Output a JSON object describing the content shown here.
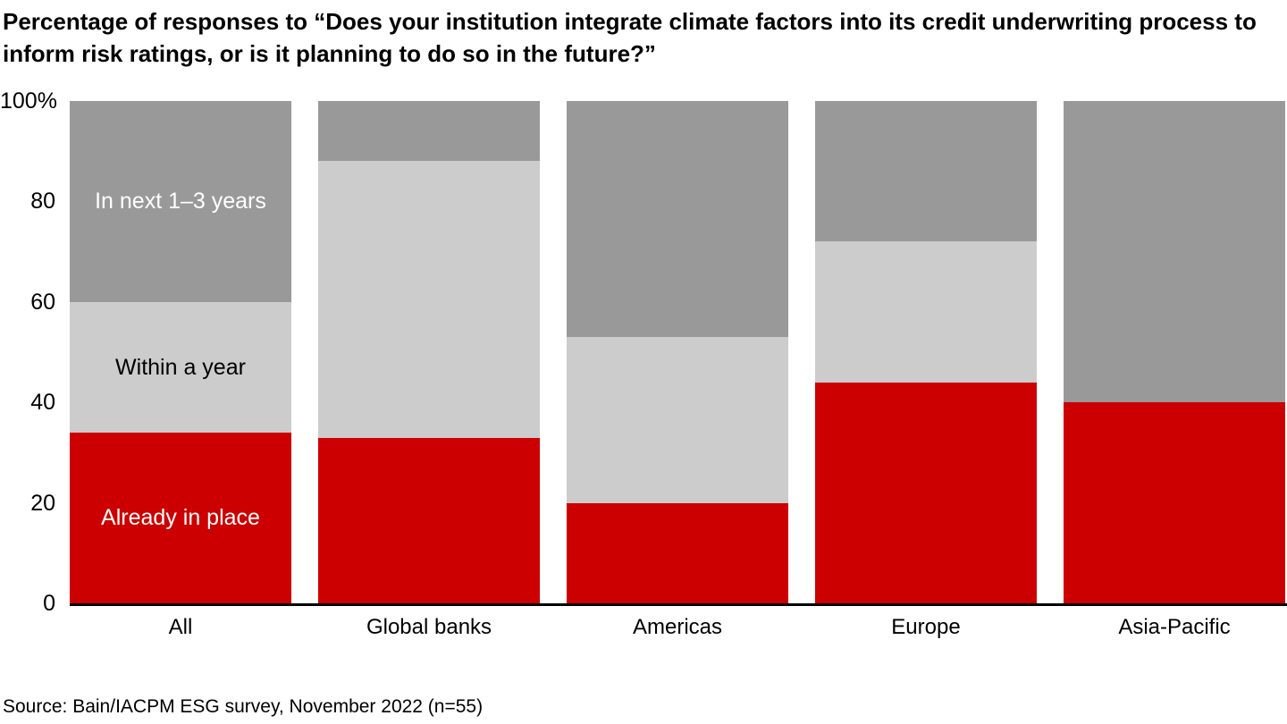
{
  "title": "Percentage of responses to “Does your institution integrate climate factors into its credit underwriting process to inform risk ratings, or is it planning to do so in the future?”",
  "source": "Source: Bain/IACPM ESG survey, November 2022 (n=55)",
  "colors": {
    "already_in_place": "#cc0000",
    "within_a_year": "#cccccc",
    "in_next_1_3_years": "#999999",
    "axis_line": "#000000",
    "background": "#ffffff",
    "text": "#000000"
  },
  "chart_data": {
    "type": "bar",
    "variant": "100%-stacked vertical bars",
    "title": "Percentage of responses to “Does your institution integrate climate factors into its credit underwriting process to inform risk ratings, or is it planning to do so in the future?”",
    "categories": [
      "All",
      "Global banks",
      "Americas",
      "Europe",
      "Asia-Pacific"
    ],
    "series": [
      {
        "name": "Already in place",
        "color": "#cc0000",
        "label_color": "#ffffff",
        "values": [
          34,
          33,
          20,
          44,
          40
        ]
      },
      {
        "name": "Within a year",
        "color": "#cccccc",
        "label_color": "#000000",
        "values": [
          26,
          55,
          33,
          28,
          0
        ]
      },
      {
        "name": "In next 1–3 years",
        "color": "#999999",
        "label_color": "#ffffff",
        "values": [
          40,
          12,
          47,
          28,
          60
        ]
      }
    ],
    "stack_order": "bottom-to-top as listed in series",
    "y_axis": {
      "min": 0,
      "max": 100,
      "tick_values": [
        0,
        20,
        40,
        60,
        80,
        100
      ],
      "tick_labels": [
        "0",
        "20",
        "40",
        "60",
        "80",
        "100%"
      ]
    },
    "xlabel": "",
    "ylabel": "",
    "grid": false,
    "legend_position": "segment labels shown inside first bar (All)"
  }
}
